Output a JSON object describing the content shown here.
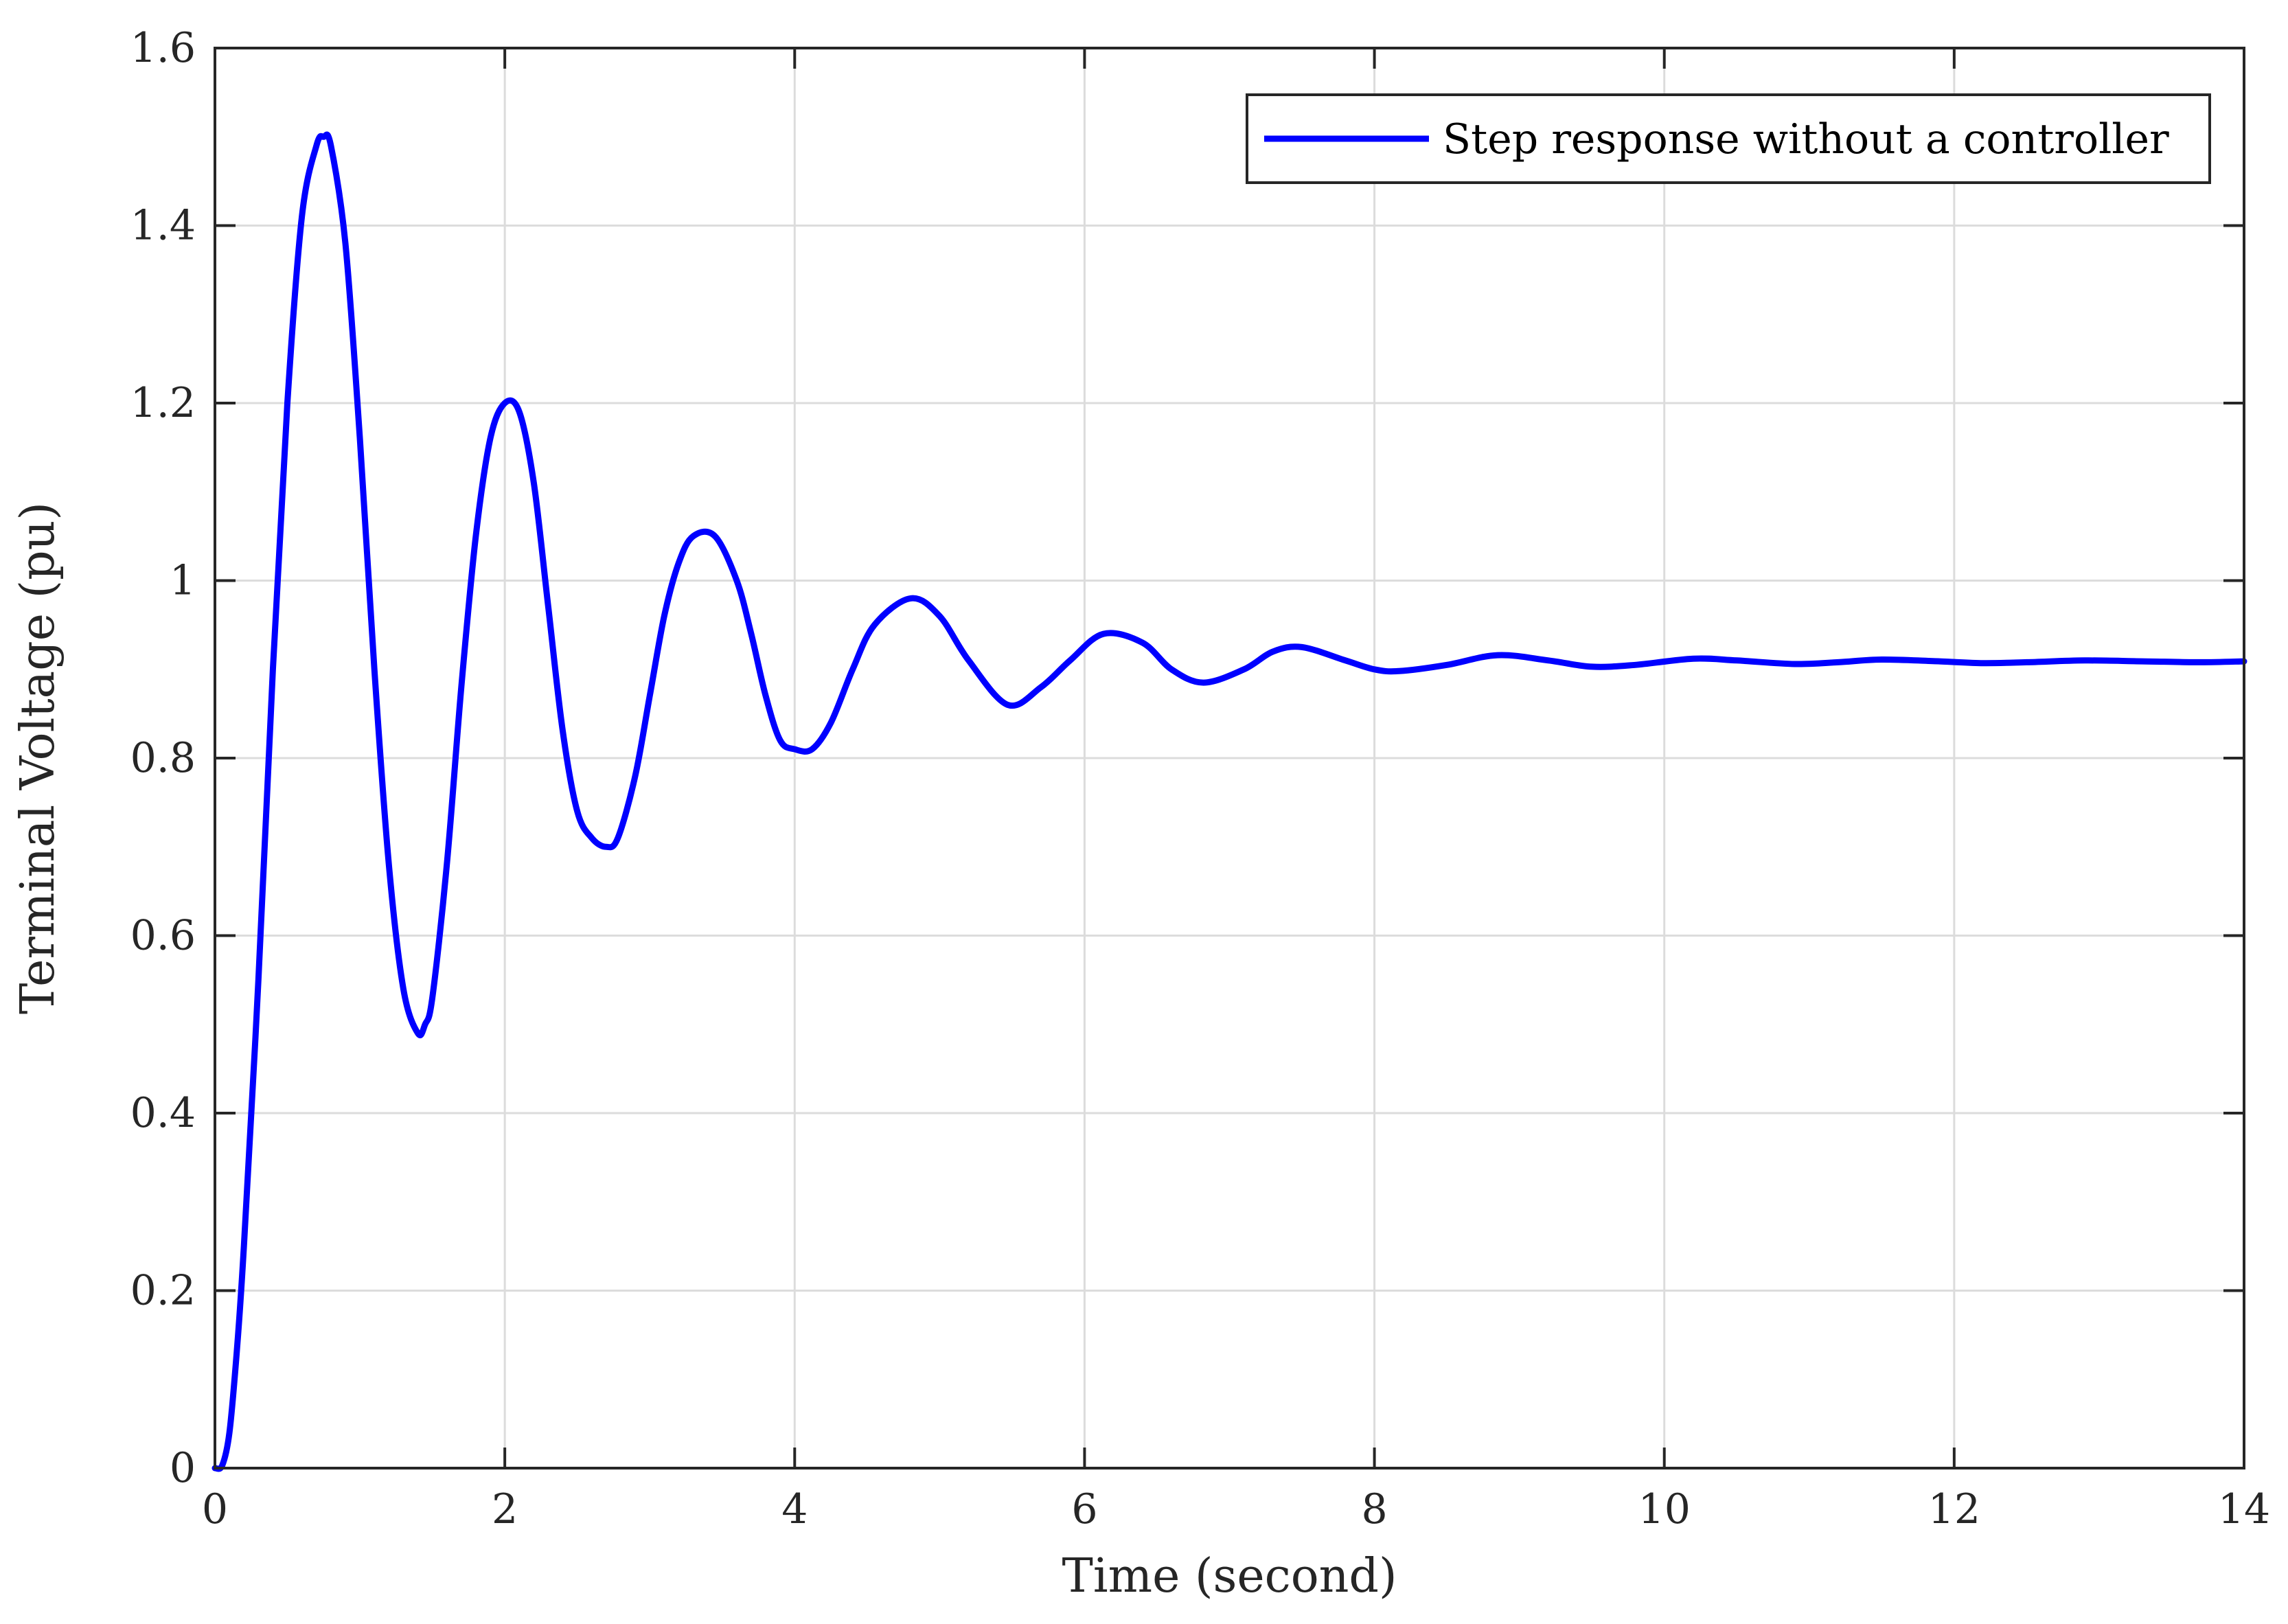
{
  "chart_data": {
    "type": "line",
    "title": "",
    "xlabel": "Time (second)",
    "ylabel": "Terminal Voltage (pu)",
    "xlim": [
      0,
      14
    ],
    "ylim": [
      0,
      1.6
    ],
    "xticks": [
      0,
      2,
      4,
      6,
      8,
      10,
      12,
      14
    ],
    "xtick_labels": [
      "0",
      "2",
      "4",
      "6",
      "8",
      "10",
      "12",
      "14"
    ],
    "yticks": [
      0,
      0.2,
      0.4,
      0.6,
      0.8,
      1.0,
      1.2,
      1.4,
      1.6
    ],
    "ytick_labels": [
      "0",
      "0.2",
      "0.4",
      "0.6",
      "0.8",
      "1",
      "1.2",
      "1.4",
      "1.6"
    ],
    "grid": true,
    "legend_position": "top-right",
    "series": [
      {
        "name": "Step response without a controller",
        "color": "#0000ff",
        "x": [
          0,
          0.05,
          0.1,
          0.15,
          0.2,
          0.3,
          0.4,
          0.5,
          0.6,
          0.7,
          0.75,
          0.8,
          0.9,
          1.0,
          1.1,
          1.2,
          1.3,
          1.4,
          1.45,
          1.5,
          1.6,
          1.7,
          1.8,
          1.9,
          2.0,
          2.1,
          2.2,
          2.3,
          2.4,
          2.5,
          2.6,
          2.7,
          2.78,
          2.9,
          3.0,
          3.1,
          3.2,
          3.3,
          3.45,
          3.6,
          3.7,
          3.8,
          3.9,
          4.0,
          4.12,
          4.25,
          4.4,
          4.55,
          4.8,
          5.0,
          5.2,
          5.47,
          5.7,
          5.9,
          6.13,
          6.4,
          6.6,
          6.82,
          7.1,
          7.3,
          7.5,
          7.8,
          8.0,
          8.17,
          8.5,
          8.85,
          9.2,
          9.5,
          9.8,
          10.2,
          10.5,
          10.9,
          11.2,
          11.5,
          11.9,
          12.2,
          12.5,
          12.9,
          13.3,
          13.7,
          14.0
        ],
        "y": [
          0,
          0.003,
          0.04,
          0.13,
          0.25,
          0.55,
          0.9,
          1.2,
          1.41,
          1.49,
          1.5,
          1.49,
          1.38,
          1.16,
          0.9,
          0.68,
          0.54,
          0.49,
          0.5,
          0.53,
          0.68,
          0.88,
          1.05,
          1.16,
          1.2,
          1.19,
          1.11,
          0.97,
          0.83,
          0.74,
          0.71,
          0.7,
          0.71,
          0.78,
          0.87,
          0.96,
          1.02,
          1.05,
          1.05,
          1.0,
          0.94,
          0.87,
          0.82,
          0.81,
          0.81,
          0.84,
          0.9,
          0.95,
          0.98,
          0.96,
          0.91,
          0.86,
          0.88,
          0.91,
          0.94,
          0.93,
          0.9,
          0.885,
          0.9,
          0.92,
          0.925,
          0.91,
          0.9,
          0.898,
          0.905,
          0.916,
          0.91,
          0.903,
          0.905,
          0.912,
          0.91,
          0.906,
          0.908,
          0.911,
          0.909,
          0.907,
          0.908,
          0.91,
          0.909,
          0.908,
          0.909
        ]
      }
    ]
  }
}
